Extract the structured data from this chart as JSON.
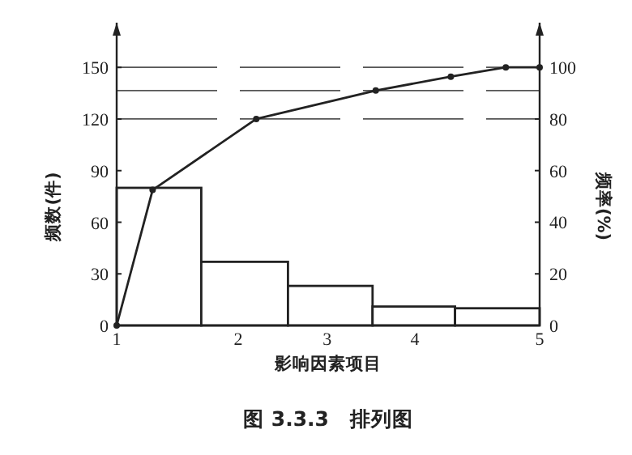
{
  "chart_data": {
    "type": "histogram",
    "title": "图 3.3.3　排列图",
    "xlabel": "影响因素项目",
    "ylabel": "频数(件)",
    "y2label": "频率(%)",
    "bins": [
      1,
      1.8,
      2.62,
      3.42,
      4.2,
      5
    ],
    "values": [
      80,
      37,
      23,
      11,
      10
    ],
    "color": "#222222",
    "series": [
      {
        "type": "line",
        "axis": "y2",
        "color": "#222222",
        "marker": "circle",
        "x": [
          1,
          1.34,
          2.32,
          3.45,
          4.16,
          4.68,
          5
        ],
        "values": [
          0,
          52.5,
          80,
          91,
          96.4,
          100,
          100
        ]
      }
    ],
    "xlim": [
      1,
      5
    ],
    "xticks": [
      1,
      {
        "value": 2.15,
        "label": "2"
      },
      {
        "value": 2.99,
        "label": "3"
      },
      {
        "value": 3.82,
        "label": "4"
      },
      5
    ],
    "ylim": [
      0,
      176
    ],
    "yticks": [
      0,
      30,
      60,
      90,
      120,
      150
    ],
    "y2lim": [
      0,
      117.3
    ],
    "y2ticks": [
      0,
      20,
      40,
      60,
      80,
      100
    ],
    "ref_lines": [
      {
        "axis": "y2",
        "value": 100,
        "line_style": "dashed",
        "color": "#555555"
      },
      {
        "axis": "y2",
        "value": 91,
        "line_style": "dashed",
        "color": "#555555"
      },
      {
        "axis": "y2",
        "value": 80,
        "line_style": "dashed",
        "color": "#555555"
      }
    ]
  }
}
